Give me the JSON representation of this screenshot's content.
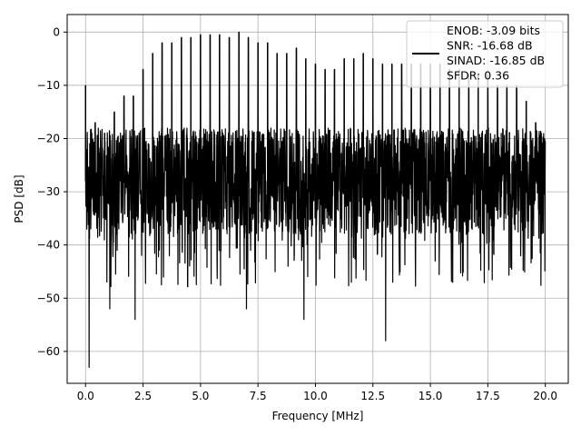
{
  "chart_data": {
    "type": "line",
    "xlabel": "Frequency [MHz]",
    "ylabel": "PSD [dB]",
    "xlim": [
      -0.8,
      21.0
    ],
    "ylim": [
      -66,
      3.3
    ],
    "x_ticks": [
      0,
      2.5,
      5,
      7.5,
      10,
      12.5,
      15,
      17.5,
      20
    ],
    "x_tick_labels": [
      "0.0",
      "2.5",
      "5.0",
      "7.5",
      "10.0",
      "12.5",
      "15.0",
      "17.5",
      "20.0"
    ],
    "y_ticks": [
      0,
      -10,
      -20,
      -30,
      -40,
      -50,
      -60
    ],
    "y_tick_labels": [
      "0",
      "−10",
      "−20",
      "−30",
      "−40",
      "−50",
      "−60"
    ],
    "grid": true,
    "legend_position": "top-right",
    "legend_lines": [
      "ENOB: -3.09 bits",
      "SNR: -16.68 dB",
      "SINAD: -16.85 dB",
      "SFDR: 0.36"
    ],
    "line_color": "#000000",
    "x_range": [
      0.0,
      20.0
    ],
    "noise_floor_db": -28,
    "noise_band_db": [
      -38,
      -18
    ],
    "min_dips": [
      {
        "x": 0.15,
        "y": -63
      },
      {
        "x": 1.05,
        "y": -52
      },
      {
        "x": 2.15,
        "y": -54
      },
      {
        "x": 7.0,
        "y": -52
      },
      {
        "x": 9.5,
        "y": -54
      },
      {
        "x": 13.05,
        "y": -58
      }
    ],
    "spurs": [
      {
        "x": 0.0,
        "y": -10
      },
      {
        "x": 0.42,
        "y": -17
      },
      {
        "x": 0.83,
        "y": -19
      },
      {
        "x": 1.25,
        "y": -15
      },
      {
        "x": 1.67,
        "y": -12
      },
      {
        "x": 2.08,
        "y": -12
      },
      {
        "x": 2.5,
        "y": -7
      },
      {
        "x": 2.92,
        "y": -4
      },
      {
        "x": 3.33,
        "y": -2
      },
      {
        "x": 3.75,
        "y": -2
      },
      {
        "x": 4.17,
        "y": -1
      },
      {
        "x": 4.58,
        "y": -1
      },
      {
        "x": 5.0,
        "y": -0.5
      },
      {
        "x": 5.42,
        "y": -0.5
      },
      {
        "x": 5.83,
        "y": -0.5
      },
      {
        "x": 6.25,
        "y": -1
      },
      {
        "x": 6.67,
        "y": 0
      },
      {
        "x": 7.08,
        "y": -1
      },
      {
        "x": 7.5,
        "y": -2
      },
      {
        "x": 7.92,
        "y": -2
      },
      {
        "x": 8.33,
        "y": -4
      },
      {
        "x": 8.75,
        "y": -4
      },
      {
        "x": 9.17,
        "y": -3
      },
      {
        "x": 9.58,
        "y": -5
      },
      {
        "x": 10.0,
        "y": -6
      },
      {
        "x": 10.42,
        "y": -7
      },
      {
        "x": 10.83,
        "y": -7
      },
      {
        "x": 11.25,
        "y": -5
      },
      {
        "x": 11.67,
        "y": -5
      },
      {
        "x": 12.08,
        "y": -4
      },
      {
        "x": 12.5,
        "y": -5
      },
      {
        "x": 12.92,
        "y": -6
      },
      {
        "x": 13.33,
        "y": -6
      },
      {
        "x": 13.75,
        "y": -6
      },
      {
        "x": 14.17,
        "y": -6
      },
      {
        "x": 14.58,
        "y": -6
      },
      {
        "x": 15.0,
        "y": -6
      },
      {
        "x": 15.42,
        "y": -6
      },
      {
        "x": 15.83,
        "y": -7
      },
      {
        "x": 16.25,
        "y": -7
      },
      {
        "x": 16.67,
        "y": -8
      },
      {
        "x": 17.08,
        "y": -8
      },
      {
        "x": 17.5,
        "y": -8
      },
      {
        "x": 17.92,
        "y": -10
      },
      {
        "x": 18.33,
        "y": -10
      },
      {
        "x": 18.75,
        "y": -10
      },
      {
        "x": 19.17,
        "y": -13
      },
      {
        "x": 19.58,
        "y": -17
      }
    ]
  }
}
